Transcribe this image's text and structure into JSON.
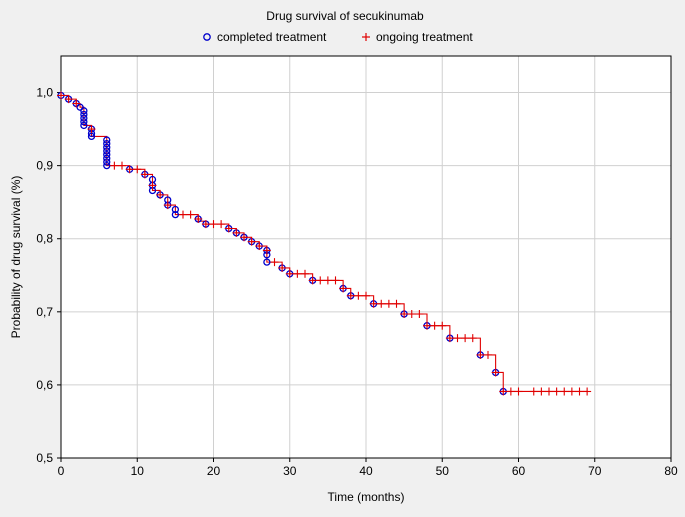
{
  "chart_data": {
    "type": "line",
    "title": "Drug survival of secukinumab",
    "xlabel": "Time (months)",
    "ylabel": "Probability of drug survival (%)",
    "xlim": [
      0,
      80
    ],
    "ylim": [
      0.5,
      1.05
    ],
    "grid": true,
    "legend_position": "top-center",
    "x_ticks": [
      0,
      10,
      20,
      30,
      40,
      50,
      60,
      70,
      80
    ],
    "x_tick_labels": [
      "0",
      "10",
      "20",
      "30",
      "40",
      "50",
      "60",
      "70",
      "80"
    ],
    "y_ticks": [
      0.5,
      0.6,
      0.7,
      0.8,
      0.9,
      1.0
    ],
    "y_tick_labels": [
      "0,5",
      "0,6",
      "0,7",
      "0,8",
      "0,9",
      "1,0"
    ],
    "series": [
      {
        "name": "survival curve",
        "style": "step",
        "points": [
          [
            0,
            1.0
          ],
          [
            0,
            0.996
          ],
          [
            1,
            0.991
          ],
          [
            2,
            0.985
          ],
          [
            2.5,
            0.98
          ],
          [
            3,
            0.975
          ],
          [
            3,
            0.97
          ],
          [
            3,
            0.965
          ],
          [
            3,
            0.96
          ],
          [
            3,
            0.955
          ],
          [
            4,
            0.95
          ],
          [
            4,
            0.944
          ],
          [
            4,
            0.94
          ],
          [
            6,
            0.935
          ],
          [
            6,
            0.93
          ],
          [
            6,
            0.925
          ],
          [
            6,
            0.92
          ],
          [
            6,
            0.915
          ],
          [
            6,
            0.91
          ],
          [
            6,
            0.905
          ],
          [
            6,
            0.9
          ],
          [
            9,
            0.895
          ],
          [
            11,
            0.888
          ],
          [
            12,
            0.881
          ],
          [
            12,
            0.873
          ],
          [
            12,
            0.866
          ],
          [
            13,
            0.86
          ],
          [
            14,
            0.853
          ],
          [
            14,
            0.846
          ],
          [
            15,
            0.84
          ],
          [
            15,
            0.833
          ],
          [
            18,
            0.827
          ],
          [
            18,
            0.824
          ],
          [
            19,
            0.82
          ],
          [
            22,
            0.814
          ],
          [
            23,
            0.808
          ],
          [
            24,
            0.802
          ],
          [
            25,
            0.796
          ],
          [
            26,
            0.79
          ],
          [
            27,
            0.784
          ],
          [
            27,
            0.778
          ],
          [
            27,
            0.768
          ],
          [
            29,
            0.76
          ],
          [
            30,
            0.752
          ],
          [
            33,
            0.743
          ],
          [
            37,
            0.732
          ],
          [
            38,
            0.722
          ],
          [
            41,
            0.711
          ],
          [
            45,
            0.697
          ],
          [
            48,
            0.681
          ],
          [
            51,
            0.664
          ],
          [
            55,
            0.641
          ],
          [
            57,
            0.617
          ],
          [
            58,
            0.591
          ],
          [
            69,
            0.591
          ]
        ],
        "color": "#e00000"
      },
      {
        "name": "completed treatment",
        "style": "markers",
        "marker": "circle",
        "color": "#0000cc",
        "points": [
          [
            0,
            0.996
          ],
          [
            1,
            0.991
          ],
          [
            2,
            0.985
          ],
          [
            2.5,
            0.98
          ],
          [
            3,
            0.975
          ],
          [
            3,
            0.97
          ],
          [
            3,
            0.965
          ],
          [
            3,
            0.96
          ],
          [
            3,
            0.955
          ],
          [
            4,
            0.95
          ],
          [
            4,
            0.944
          ],
          [
            4,
            0.94
          ],
          [
            6,
            0.935
          ],
          [
            6,
            0.93
          ],
          [
            6,
            0.925
          ],
          [
            6,
            0.92
          ],
          [
            6,
            0.915
          ],
          [
            6,
            0.91
          ],
          [
            6,
            0.905
          ],
          [
            6,
            0.9
          ],
          [
            9,
            0.895
          ],
          [
            11,
            0.888
          ],
          [
            12,
            0.881
          ],
          [
            12,
            0.873
          ],
          [
            12,
            0.866
          ],
          [
            13,
            0.86
          ],
          [
            14,
            0.853
          ],
          [
            14,
            0.846
          ],
          [
            15,
            0.84
          ],
          [
            15,
            0.833
          ],
          [
            18,
            0.827
          ],
          [
            19,
            0.82
          ],
          [
            22,
            0.814
          ],
          [
            23,
            0.808
          ],
          [
            24,
            0.802
          ],
          [
            25,
            0.796
          ],
          [
            26,
            0.79
          ],
          [
            27,
            0.784
          ],
          [
            27,
            0.778
          ],
          [
            27,
            0.768
          ],
          [
            29,
            0.76
          ],
          [
            30,
            0.752
          ],
          [
            33,
            0.743
          ],
          [
            37,
            0.732
          ],
          [
            38,
            0.722
          ],
          [
            41,
            0.711
          ],
          [
            45,
            0.697
          ],
          [
            48,
            0.681
          ],
          [
            51,
            0.664
          ],
          [
            55,
            0.641
          ],
          [
            57,
            0.617
          ],
          [
            58,
            0.591
          ]
        ]
      },
      {
        "name": "ongoing treatment",
        "style": "markers",
        "marker": "plus",
        "color": "#e00000",
        "points": [
          [
            0,
            0.996
          ],
          [
            1,
            0.991
          ],
          [
            2,
            0.985
          ],
          [
            4,
            0.95
          ],
          [
            7,
            0.9
          ],
          [
            8,
            0.9
          ],
          [
            9,
            0.895
          ],
          [
            10,
            0.895
          ],
          [
            11,
            0.888
          ],
          [
            12,
            0.873
          ],
          [
            13,
            0.86
          ],
          [
            14,
            0.846
          ],
          [
            16,
            0.833
          ],
          [
            17,
            0.833
          ],
          [
            18,
            0.827
          ],
          [
            19,
            0.82
          ],
          [
            20,
            0.82
          ],
          [
            21,
            0.82
          ],
          [
            22,
            0.814
          ],
          [
            23,
            0.808
          ],
          [
            24,
            0.802
          ],
          [
            25,
            0.796
          ],
          [
            26,
            0.79
          ],
          [
            27,
            0.784
          ],
          [
            28,
            0.768
          ],
          [
            29,
            0.76
          ],
          [
            30,
            0.752
          ],
          [
            31,
            0.752
          ],
          [
            32,
            0.752
          ],
          [
            33,
            0.743
          ],
          [
            34,
            0.743
          ],
          [
            35,
            0.743
          ],
          [
            36,
            0.743
          ],
          [
            37,
            0.732
          ],
          [
            38,
            0.722
          ],
          [
            39,
            0.722
          ],
          [
            40,
            0.722
          ],
          [
            41,
            0.711
          ],
          [
            42,
            0.711
          ],
          [
            43,
            0.711
          ],
          [
            44,
            0.711
          ],
          [
            45,
            0.697
          ],
          [
            46,
            0.697
          ],
          [
            47,
            0.697
          ],
          [
            48,
            0.681
          ],
          [
            49,
            0.681
          ],
          [
            50,
            0.681
          ],
          [
            51,
            0.664
          ],
          [
            52,
            0.664
          ],
          [
            53,
            0.664
          ],
          [
            54,
            0.664
          ],
          [
            55,
            0.641
          ],
          [
            56,
            0.641
          ],
          [
            57,
            0.617
          ],
          [
            58,
            0.591
          ],
          [
            59,
            0.591
          ],
          [
            60,
            0.591
          ],
          [
            62,
            0.591
          ],
          [
            63,
            0.591
          ],
          [
            64,
            0.591
          ],
          [
            65,
            0.591
          ],
          [
            66,
            0.591
          ],
          [
            67,
            0.591
          ],
          [
            68,
            0.591
          ],
          [
            69,
            0.591
          ]
        ]
      }
    ],
    "legend": [
      {
        "label": "completed treatment",
        "marker": "circle",
        "color": "#0000cc"
      },
      {
        "label": "ongoing treatment",
        "marker": "plus",
        "color": "#e00000"
      }
    ]
  }
}
